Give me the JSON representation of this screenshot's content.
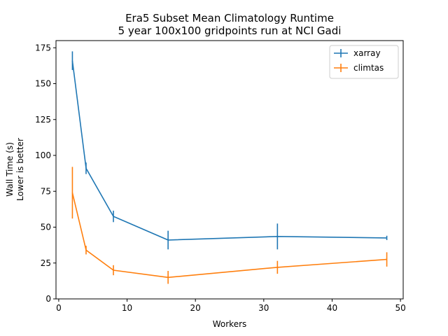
{
  "chart_data": {
    "type": "line",
    "title": [
      "Era5 Subset Mean Climatology Runtime",
      "5 year 100x100 gridpoints run at NCI Gadi"
    ],
    "xlabel": "Workers",
    "ylabel": [
      "Wall Time (s)",
      "Lower is better"
    ],
    "xlim": [
      -0.4,
      50.4
    ],
    "ylim": [
      0,
      180
    ],
    "xticks": [
      0,
      10,
      20,
      30,
      40,
      50
    ],
    "yticks": [
      0,
      25,
      50,
      75,
      100,
      125,
      150,
      175
    ],
    "grid": false,
    "legend_position": "top-right",
    "series": [
      {
        "name": "xarray",
        "color": "#1f77b4",
        "x": [
          2,
          4,
          8,
          16,
          32,
          48
        ],
        "y": [
          166,
          91,
          57.5,
          41,
          43.5,
          42.5
        ],
        "err": [
          6.5,
          4,
          4,
          6.5,
          9,
          1.5
        ]
      },
      {
        "name": "climtas",
        "color": "#ff7f0e",
        "x": [
          2,
          4,
          8,
          16,
          32,
          48
        ],
        "y": [
          74,
          34,
          20,
          15,
          22,
          27.5
        ],
        "err": [
          18,
          3,
          3.5,
          4.5,
          4.5,
          5
        ]
      }
    ]
  }
}
